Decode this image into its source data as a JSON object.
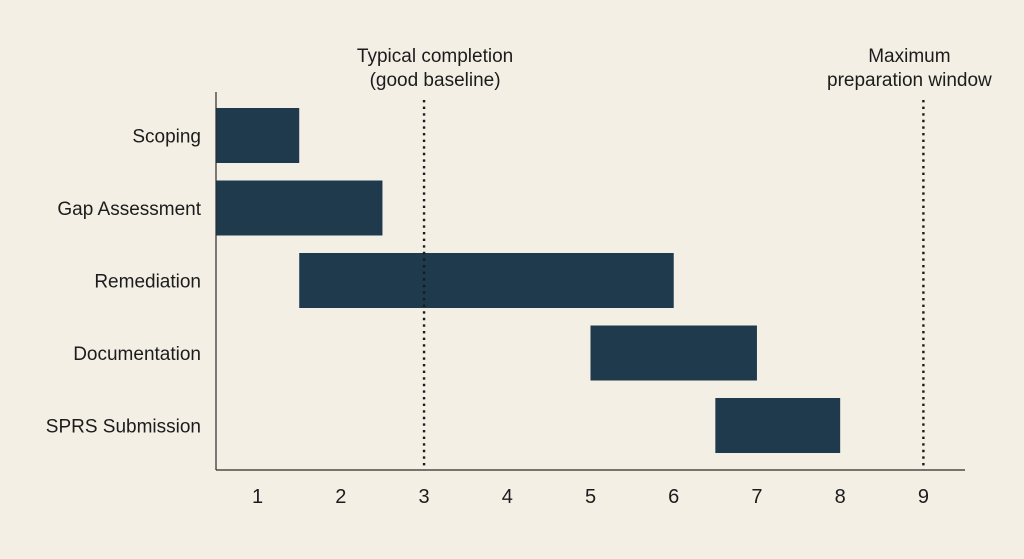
{
  "chart_data": {
    "type": "gantt",
    "title": "",
    "xlabel": "",
    "ylabel": "",
    "xlim": [
      0.5,
      9.5
    ],
    "x_ticks": [
      "1",
      "2",
      "3",
      "4",
      "5",
      "6",
      "7",
      "8",
      "9"
    ],
    "categories": [
      "Scoping",
      "Gap Assessment",
      "Remediation",
      "Documentation",
      "SPRS Submission"
    ],
    "tasks": [
      {
        "label": "Scoping",
        "start": 0.5,
        "end": 1.5
      },
      {
        "label": "Gap Assessment",
        "start": 0.5,
        "end": 2.5
      },
      {
        "label": "Remediation",
        "start": 1.5,
        "end": 6.0
      },
      {
        "label": "Documentation",
        "start": 5.0,
        "end": 7.0
      },
      {
        "label": "SPRS Submission",
        "start": 6.5,
        "end": 8.0
      }
    ],
    "reference_lines": [
      {
        "x": 3,
        "style": "dotted",
        "label_lines": [
          "Typical completion",
          "(good baseline)"
        ]
      },
      {
        "x": 9,
        "style": "dotted",
        "label_lines": [
          "Maximum",
          "preparation window"
        ]
      }
    ],
    "grid": false,
    "colors": {
      "bar": "#1e3a4c",
      "background": "#f3efe5",
      "axis": "#2b2b2b",
      "text": "#1c1c1c"
    }
  }
}
